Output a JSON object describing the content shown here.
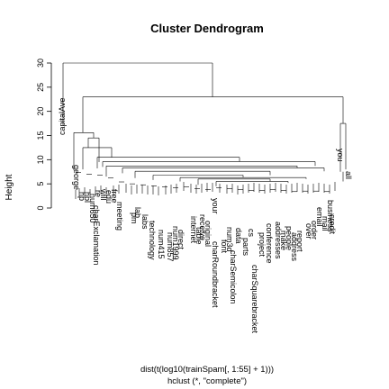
{
  "chart_data": {
    "type": "dendrogram",
    "title": "Cluster Dendrogram",
    "ylabel": "Height",
    "xlabel": "dist(t(log10(trainSpam[, 1:55] + 1)))",
    "sub": "hclust (*, \"complete\")",
    "ylim": [
      0,
      30
    ],
    "yticks": [
      0,
      5,
      10,
      15,
      20,
      25,
      30
    ],
    "root_height": 30,
    "second_split_height": 23,
    "visible_leaf_labels": [
      "capitalAve",
      "george",
      "hp",
      "hpl",
      "num650",
      "re",
      "will",
      "edu",
      "charExclamation",
      "free",
      "meeting",
      "lab",
      "labs",
      "technology",
      "num415",
      "num857",
      "num1999",
      "your",
      "you",
      "internet",
      "receive",
      "original",
      "charRoundbracket",
      "charSemicolon",
      "charSquarebracket",
      "conference",
      "addresses",
      "people",
      "report",
      "business",
      "over",
      "all",
      "email",
      "mail",
      "order",
      "credit",
      "font",
      "parts",
      "direct",
      "pm",
      "cs",
      "data",
      "project",
      "table",
      "num3d",
      "make",
      "address"
    ]
  }
}
